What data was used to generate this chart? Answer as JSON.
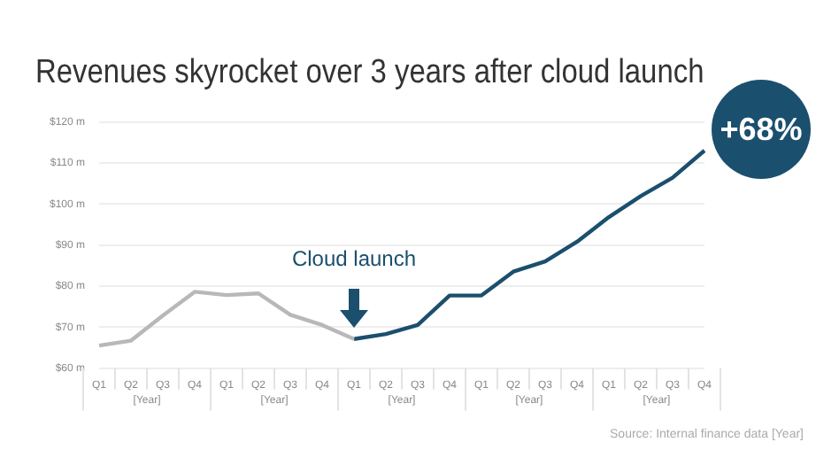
{
  "chart_data": {
    "type": "line",
    "title": "Revenues skyrocket over 3 years after cloud launch",
    "categories": [
      "Q1",
      "Q2",
      "Q3",
      "Q4",
      "Q1",
      "Q2",
      "Q3",
      "Q4",
      "Q1",
      "Q2",
      "Q3",
      "Q4",
      "Q1",
      "Q2",
      "Q3",
      "Q4",
      "Q1",
      "Q2",
      "Q3",
      "Q4"
    ],
    "series": [
      {
        "color": "#b8b8b8",
        "values": [
          65.5,
          66.7,
          72.8,
          78.6,
          77.8,
          78.2,
          73,
          70.5,
          67.1,
          null,
          null,
          null,
          null,
          null,
          null,
          null,
          null,
          null,
          null,
          null
        ]
      },
      {
        "color": "#1b4f6e",
        "values": [
          null,
          null,
          null,
          null,
          null,
          null,
          null,
          null,
          67.1,
          68.3,
          70.5,
          77.7,
          77.7,
          83.5,
          86,
          90.8,
          96.8,
          101.9,
          106.4,
          113
        ]
      }
    ],
    "ylim": [
      60,
      120
    ],
    "yticks": [
      {
        "value": 60,
        "label": "$60 m"
      },
      {
        "value": 70,
        "label": "$70 m"
      },
      {
        "value": 80,
        "label": "$80 m"
      },
      {
        "value": 90,
        "label": "$90 m"
      },
      {
        "value": 100,
        "label": "$100 m"
      },
      {
        "value": 110,
        "label": "$110 m"
      },
      {
        "value": 120,
        "label": "$120 m"
      }
    ],
    "grid": "y",
    "legend": false,
    "marker": "none",
    "line_style": "solid",
    "annotations": [
      "Cloud launch",
      "+68%",
      "[Year]",
      "[Year]",
      "[Year]",
      "[Year]",
      "[Year]",
      "Source: Internal finance data [Year]"
    ]
  }
}
